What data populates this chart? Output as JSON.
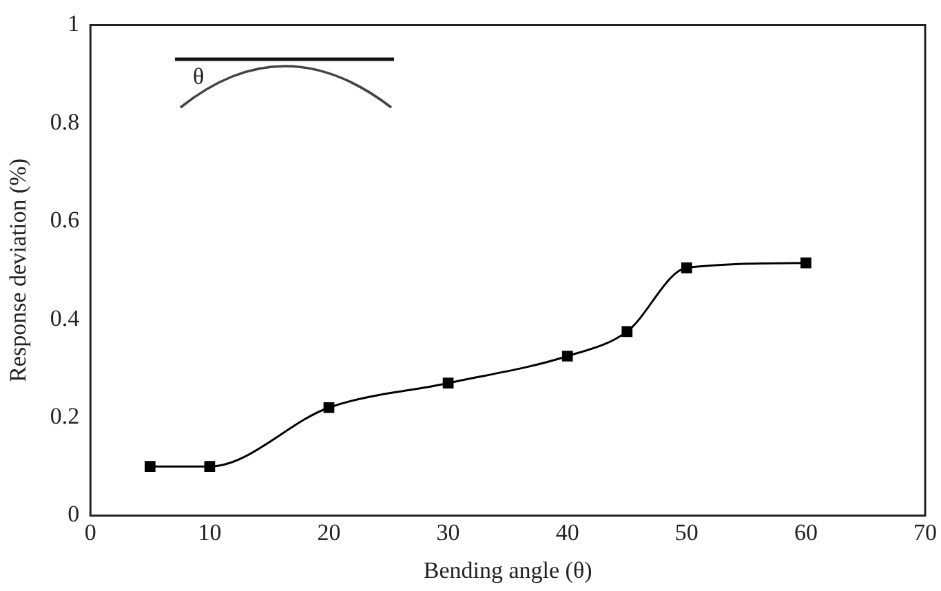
{
  "chart_data": {
    "type": "line",
    "xlabel": "Bending angle (θ)",
    "ylabel": "Response deviation (%)",
    "x": [
      5,
      10,
      20,
      30,
      40,
      45,
      50,
      60
    ],
    "values": [
      0.1,
      0.1,
      0.22,
      0.27,
      0.325,
      0.375,
      0.505,
      0.515
    ],
    "color": "#000000",
    "marker": "square",
    "line_style": "solid",
    "xlim": [
      0,
      70
    ],
    "xticks": [
      0,
      10,
      20,
      30,
      40,
      50,
      60,
      70
    ],
    "ylim": [
      0,
      1
    ],
    "yticks": [
      0,
      0.2,
      0.4,
      0.6,
      0.8,
      1
    ],
    "grid": false,
    "legend": false,
    "annotations": [
      "θ"
    ]
  }
}
